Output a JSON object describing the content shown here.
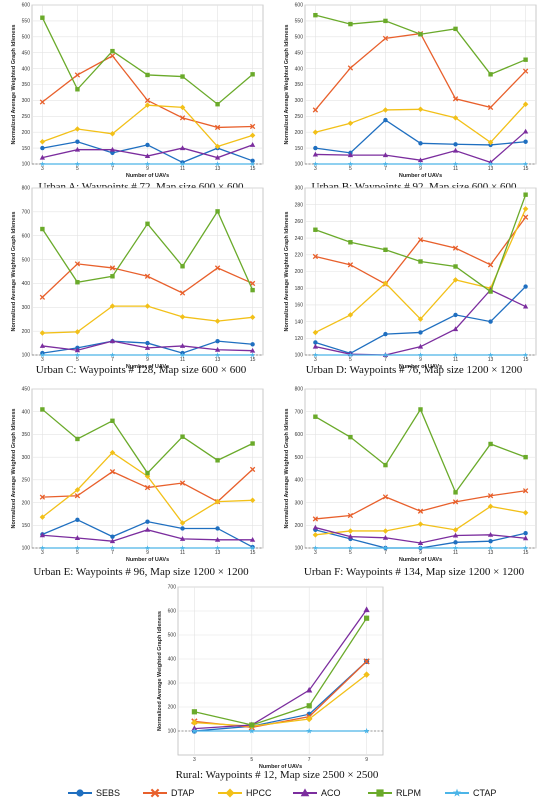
{
  "series_styles": [
    {
      "name": "SEBS",
      "color": "#1f6fc0",
      "marker": "circle"
    },
    {
      "name": "DTAP",
      "color": "#e8602c",
      "marker": "x"
    },
    {
      "name": "HPCC",
      "color": "#f2c018",
      "marker": "diamond"
    },
    {
      "name": "ACO",
      "color": "#7b2d9e",
      "marker": "triangle"
    },
    {
      "name": "RLPM",
      "color": "#6aaa2a",
      "marker": "square"
    },
    {
      "name": "CTAP",
      "color": "#4cb5e8",
      "marker": "star"
    }
  ],
  "chart_data": [
    {
      "type": "line",
      "caption": "Urban A: Waypoints # 72, Map size 600 × 600",
      "xlabel": "Number of UAVs",
      "ylabel": "Normalized Average Weighted Graph Idleness",
      "x": [
        3,
        5,
        7,
        9,
        11,
        13,
        15
      ],
      "ylim": [
        100,
        600
      ],
      "yticks": [
        100,
        150,
        200,
        250,
        300,
        350,
        400,
        450,
        500,
        550,
        600
      ],
      "baseline": 100,
      "series": [
        {
          "name": "SEBS",
          "values": [
            150,
            170,
            135,
            160,
            105,
            150,
            110
          ]
        },
        {
          "name": "DTAP",
          "values": [
            295,
            380,
            440,
            300,
            245,
            215,
            218
          ]
        },
        {
          "name": "HPCC",
          "values": [
            170,
            210,
            195,
            285,
            278,
            155,
            190
          ]
        },
        {
          "name": "ACO",
          "values": [
            120,
            145,
            145,
            125,
            150,
            120,
            160
          ]
        },
        {
          "name": "RLPM",
          "values": [
            560,
            335,
            455,
            380,
            375,
            288,
            382
          ]
        },
        {
          "name": "CTAP",
          "values": [
            100,
            100,
            100,
            100,
            100,
            100,
            100
          ]
        }
      ]
    },
    {
      "type": "line",
      "caption": "Urban B: Waypoints # 92, Map size 600 × 600",
      "xlabel": "Number of UAVs",
      "ylabel": "Normalized Average Weighted Graph Idleness",
      "x": [
        3,
        5,
        7,
        9,
        11,
        13,
        15
      ],
      "ylim": [
        100,
        600
      ],
      "yticks": [
        100,
        150,
        200,
        250,
        300,
        350,
        400,
        450,
        500,
        550,
        600
      ],
      "baseline": 100,
      "series": [
        {
          "name": "SEBS",
          "values": [
            150,
            135,
            238,
            165,
            162,
            160,
            170
          ]
        },
        {
          "name": "DTAP",
          "values": [
            270,
            402,
            495,
            510,
            305,
            278,
            392
          ]
        },
        {
          "name": "HPCC",
          "values": [
            200,
            228,
            270,
            272,
            245,
            168,
            288
          ]
        },
        {
          "name": "ACO",
          "values": [
            130,
            128,
            128,
            112,
            142,
            105,
            202
          ]
        },
        {
          "name": "RLPM",
          "values": [
            568,
            540,
            550,
            508,
            525,
            382,
            428
          ]
        },
        {
          "name": "CTAP",
          "values": [
            100,
            100,
            100,
            100,
            100,
            100,
            100
          ]
        }
      ]
    },
    {
      "type": "line",
      "caption": "Urban C: Waypoints # 128, Map size 600 × 600",
      "xlabel": "Number of UAVs",
      "ylabel": "Normalized Average Weighted Graph Idleness",
      "x": [
        3,
        5,
        7,
        9,
        11,
        13,
        15
      ],
      "ylim": [
        100,
        800
      ],
      "yticks": [
        100,
        200,
        300,
        400,
        500,
        600,
        700,
        800
      ],
      "baseline": 100,
      "series": [
        {
          "name": "SEBS",
          "values": [
            108,
            130,
            158,
            150,
            108,
            158,
            145
          ]
        },
        {
          "name": "DTAP",
          "values": [
            342,
            482,
            465,
            430,
            360,
            465,
            400
          ]
        },
        {
          "name": "HPCC",
          "values": [
            192,
            197,
            305,
            305,
            260,
            242,
            258
          ]
        },
        {
          "name": "ACO",
          "values": [
            138,
            120,
            158,
            130,
            138,
            122,
            118
          ]
        },
        {
          "name": "RLPM",
          "values": [
            628,
            405,
            430,
            650,
            472,
            702,
            372
          ]
        },
        {
          "name": "CTAP",
          "values": [
            100,
            100,
            100,
            100,
            100,
            100,
            100
          ]
        }
      ]
    },
    {
      "type": "line",
      "caption": "Urban D: Waypoints # 76, Map size 1200 × 1200",
      "xlabel": "Number of UAVs",
      "ylabel": "Normalized Average Weighted Graph Idleness",
      "x": [
        3,
        5,
        7,
        9,
        11,
        13,
        15
      ],
      "ylim": [
        100,
        300
      ],
      "yticks": [
        100,
        120,
        140,
        160,
        180,
        200,
        220,
        240,
        260,
        280,
        300
      ],
      "baseline": 100,
      "series": [
        {
          "name": "SEBS",
          "values": [
            115,
            102,
            125,
            127,
            148,
            140,
            182
          ]
        },
        {
          "name": "DTAP",
          "values": [
            218,
            208,
            185,
            238,
            228,
            208,
            265
          ]
        },
        {
          "name": "HPCC",
          "values": [
            127,
            148,
            186,
            143,
            190,
            180,
            275
          ]
        },
        {
          "name": "ACO",
          "values": [
            110,
            101,
            100,
            110,
            131,
            178,
            158
          ]
        },
        {
          "name": "RLPM",
          "values": [
            250,
            235,
            226,
            212,
            206,
            176,
            292
          ]
        },
        {
          "name": "CTAP",
          "values": [
            100,
            100,
            100,
            100,
            100,
            100,
            100
          ]
        }
      ]
    },
    {
      "type": "line",
      "caption": "Urban E: Waypoints # 96, Map size 1200 × 1200",
      "xlabel": "Number of UAVs",
      "ylabel": "Normalized Average Weighted Graph Idleness",
      "x": [
        3,
        5,
        7,
        9,
        11,
        13,
        15
      ],
      "ylim": [
        100,
        450
      ],
      "yticks": [
        100,
        150,
        200,
        250,
        300,
        350,
        400,
        450
      ],
      "baseline": 100,
      "series": [
        {
          "name": "SEBS",
          "values": [
            130,
            162,
            125,
            158,
            143,
            143,
            102
          ]
        },
        {
          "name": "DTAP",
          "values": [
            212,
            215,
            268,
            233,
            243,
            202,
            273
          ]
        },
        {
          "name": "HPCC",
          "values": [
            168,
            228,
            310,
            258,
            155,
            202,
            205
          ]
        },
        {
          "name": "ACO",
          "values": [
            128,
            122,
            115,
            140,
            120,
            118,
            118
          ]
        },
        {
          "name": "RLPM",
          "values": [
            405,
            340,
            380,
            265,
            345,
            293,
            330
          ]
        },
        {
          "name": "CTAP",
          "values": [
            100,
            100,
            100,
            100,
            100,
            100,
            100
          ]
        }
      ]
    },
    {
      "type": "line",
      "caption": "Urban F: Waypoints # 134, Map size 1200 × 1200",
      "xlabel": "Number of UAVs",
      "ylabel": "Normalized Average Weighted Graph Idleness",
      "x": [
        3,
        5,
        7,
        9,
        11,
        13,
        15
      ],
      "ylim": [
        100,
        800
      ],
      "yticks": [
        100,
        200,
        300,
        400,
        500,
        600,
        700,
        800
      ],
      "baseline": 100,
      "series": [
        {
          "name": "SEBS",
          "values": [
            180,
            140,
            100,
            100,
            125,
            130,
            165
          ]
        },
        {
          "name": "DTAP",
          "values": [
            228,
            243,
            325,
            262,
            303,
            330,
            352
          ]
        },
        {
          "name": "HPCC",
          "values": [
            158,
            175,
            175,
            205,
            180,
            283,
            255
          ]
        },
        {
          "name": "ACO",
          "values": [
            190,
            150,
            145,
            122,
            155,
            158,
            143
          ]
        },
        {
          "name": "RLPM",
          "values": [
            678,
            588,
            465,
            710,
            345,
            558,
            500
          ]
        },
        {
          "name": "CTAP",
          "values": [
            100,
            100,
            100,
            100,
            100,
            100,
            100
          ]
        }
      ]
    },
    {
      "type": "line",
      "caption": "Rural: Waypoints # 12, Map size 2500 × 2500",
      "xlabel": "Number of UAVs",
      "ylabel": "Normalized Average Weighted Graph Idleness",
      "x": [
        3,
        5,
        7,
        9
      ],
      "ylim": [
        0,
        700
      ],
      "yticks": [
        100,
        200,
        300,
        400,
        500,
        600,
        700
      ],
      "baseline": 100,
      "series": [
        {
          "name": "SEBS",
          "values": [
            100,
            120,
            170,
            390
          ]
        },
        {
          "name": "DTAP",
          "values": [
            140,
            115,
            160,
            390
          ]
        },
        {
          "name": "HPCC",
          "values": [
            135,
            120,
            150,
            335
          ]
        },
        {
          "name": "ACO",
          "values": [
            110,
            125,
            270,
            605
          ]
        },
        {
          "name": "RLPM",
          "values": [
            180,
            125,
            205,
            570
          ]
        },
        {
          "name": "CTAP",
          "values": [
            100,
            100,
            100,
            100
          ]
        }
      ]
    }
  ]
}
